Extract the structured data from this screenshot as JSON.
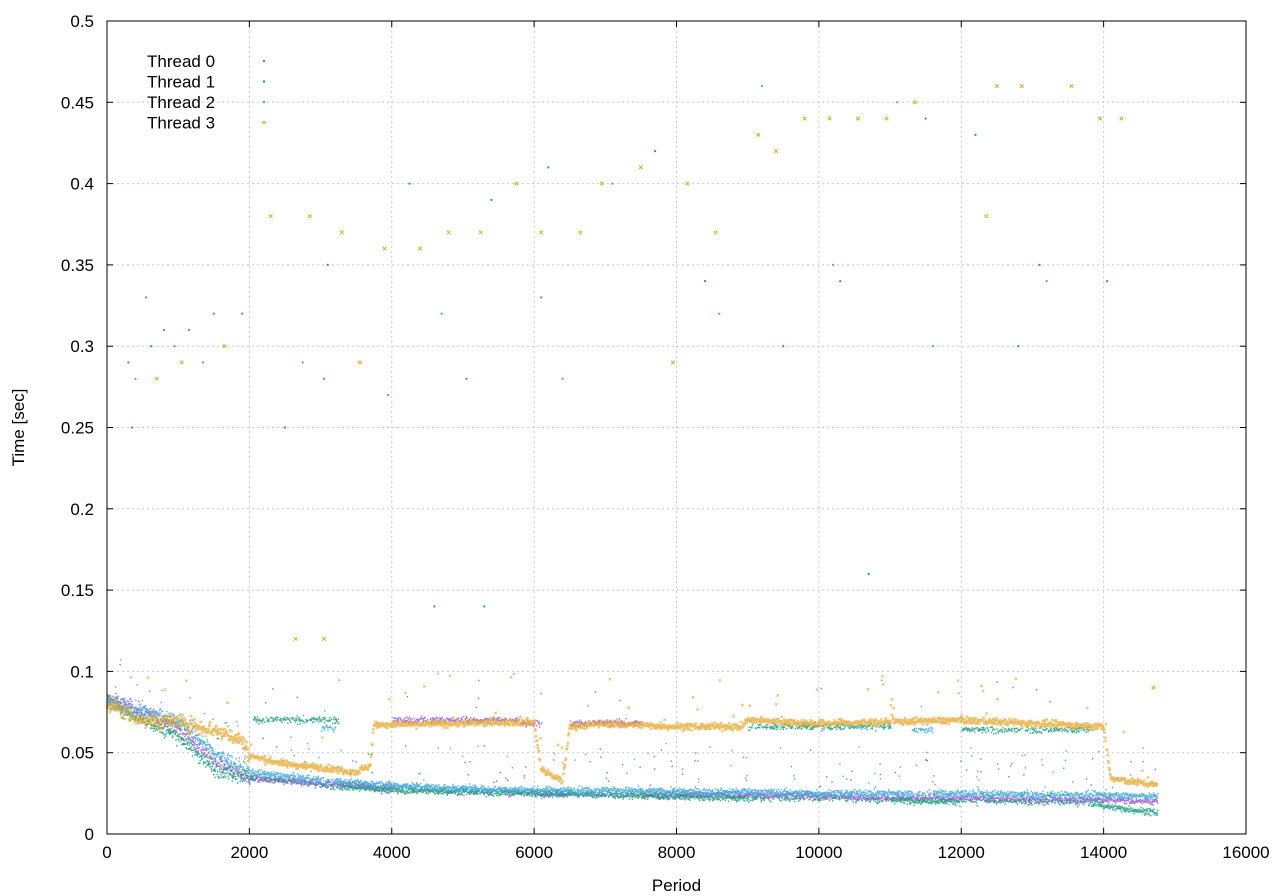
{
  "chart_data": {
    "type": "scatter",
    "title": "",
    "xlabel": "Period",
    "ylabel": "Time [sec]",
    "xlim": [
      0,
      16000
    ],
    "ylim": [
      0,
      0.5
    ],
    "xticks": [
      0,
      2000,
      4000,
      6000,
      8000,
      10000,
      12000,
      14000,
      16000
    ],
    "yticks": [
      0,
      0.05,
      0.1,
      0.15,
      0.2,
      0.25,
      0.3,
      0.35,
      0.4,
      0.45,
      0.5
    ],
    "grid": true,
    "legend_position": "top-left",
    "series": [
      {
        "name": "Thread 0",
        "color": "#9b59d6",
        "marker": "dot",
        "baseline": [
          [
            0,
            0.083
          ],
          [
            500,
            0.075
          ],
          [
            1000,
            0.065
          ],
          [
            1500,
            0.045
          ],
          [
            2000,
            0.034
          ],
          [
            3000,
            0.031
          ],
          [
            4000,
            0.028
          ],
          [
            5000,
            0.026
          ],
          [
            6000,
            0.025
          ],
          [
            7000,
            0.024
          ],
          [
            8000,
            0.024
          ],
          [
            9000,
            0.024
          ],
          [
            10000,
            0.023
          ],
          [
            11000,
            0.022
          ],
          [
            12000,
            0.022
          ],
          [
            13000,
            0.021
          ],
          [
            14000,
            0.021
          ],
          [
            14750,
            0.02
          ]
        ],
        "plateaus": [
          [
            4000,
            5800,
            0.07
          ],
          [
            5800,
            6100,
            0.068
          ],
          [
            6500,
            7500,
            0.068
          ]
        ],
        "outliers": [
          [
            300,
            0.29
          ],
          [
            550,
            0.33
          ],
          [
            800,
            0.31
          ],
          [
            1150,
            0.31
          ],
          [
            1500,
            0.32
          ],
          [
            2500,
            0.25
          ],
          [
            3050,
            0.28
          ],
          [
            5050,
            0.28
          ],
          [
            6100,
            0.33
          ],
          [
            10300,
            0.34
          ]
        ]
      },
      {
        "name": "Thread 1",
        "color": "#1a9e7e",
        "marker": "dot",
        "baseline": [
          [
            0,
            0.082
          ],
          [
            500,
            0.07
          ],
          [
            1000,
            0.06
          ],
          [
            1500,
            0.04
          ],
          [
            2000,
            0.035
          ],
          [
            3000,
            0.03
          ],
          [
            4000,
            0.027
          ],
          [
            5000,
            0.026
          ],
          [
            6000,
            0.025
          ],
          [
            7000,
            0.024
          ],
          [
            8000,
            0.023
          ],
          [
            9000,
            0.022
          ],
          [
            10000,
            0.022
          ],
          [
            11000,
            0.021
          ],
          [
            12000,
            0.02
          ],
          [
            13000,
            0.02
          ],
          [
            13900,
            0.019
          ],
          [
            14000,
            0.017
          ],
          [
            14750,
            0.013
          ]
        ],
        "plateaus": [
          [
            2050,
            3250,
            0.07
          ],
          [
            9000,
            11000,
            0.066
          ],
          [
            12000,
            13800,
            0.064
          ]
        ],
        "outliers": [
          [
            350,
            0.25
          ],
          [
            620,
            0.3
          ],
          [
            1900,
            0.32
          ],
          [
            3100,
            0.35
          ],
          [
            4250,
            0.4
          ],
          [
            5400,
            0.39
          ],
          [
            6200,
            0.41
          ],
          [
            7700,
            0.42
          ],
          [
            8400,
            0.34
          ],
          [
            9500,
            0.3
          ],
          [
            11500,
            0.44
          ],
          [
            12200,
            0.43
          ],
          [
            12800,
            0.3
          ],
          [
            13100,
            0.35
          ],
          [
            14050,
            0.34
          ],
          [
            10700,
            0.16
          ],
          [
            4600,
            0.14
          ],
          [
            5300,
            0.14
          ]
        ]
      },
      {
        "name": "Thread 2",
        "color": "#3ba8dc",
        "marker": "dot",
        "baseline": [
          [
            0,
            0.08
          ],
          [
            500,
            0.075
          ],
          [
            1000,
            0.07
          ],
          [
            1500,
            0.05
          ],
          [
            2000,
            0.038
          ],
          [
            3000,
            0.033
          ],
          [
            4000,
            0.03
          ],
          [
            5000,
            0.028
          ],
          [
            6000,
            0.027
          ],
          [
            7000,
            0.027
          ],
          [
            8000,
            0.026
          ],
          [
            9000,
            0.026
          ],
          [
            10000,
            0.025
          ],
          [
            11000,
            0.025
          ],
          [
            12000,
            0.025
          ],
          [
            13000,
            0.024
          ],
          [
            14000,
            0.024
          ],
          [
            14750,
            0.023
          ]
        ],
        "plateaus": [
          [
            3000,
            3200,
            0.065
          ],
          [
            11300,
            11600,
            0.064
          ]
        ],
        "outliers": [
          [
            400,
            0.28
          ],
          [
            950,
            0.3
          ],
          [
            1350,
            0.29
          ],
          [
            2750,
            0.29
          ],
          [
            3950,
            0.27
          ],
          [
            4700,
            0.32
          ],
          [
            6400,
            0.28
          ],
          [
            7100,
            0.4
          ],
          [
            8600,
            0.32
          ],
          [
            9200,
            0.46
          ],
          [
            10200,
            0.35
          ],
          [
            11100,
            0.45
          ],
          [
            11600,
            0.3
          ],
          [
            13200,
            0.34
          ]
        ]
      },
      {
        "name": "Thread 3",
        "color": "#e3a62a",
        "marker": "x",
        "baseline": [
          [
            0,
            0.08
          ],
          [
            500,
            0.07
          ],
          [
            1000,
            0.069
          ],
          [
            1500,
            0.064
          ],
          [
            1900,
            0.058
          ],
          [
            2000,
            0.048
          ],
          [
            2500,
            0.043
          ],
          [
            3000,
            0.041
          ],
          [
            3500,
            0.038
          ],
          [
            3700,
            0.042
          ],
          [
            3750,
            0.067
          ],
          [
            5000,
            0.068
          ],
          [
            6000,
            0.069
          ],
          [
            6100,
            0.04
          ],
          [
            6400,
            0.032
          ],
          [
            6500,
            0.066
          ],
          [
            7000,
            0.068
          ],
          [
            8000,
            0.066
          ],
          [
            8900,
            0.066
          ],
          [
            9000,
            0.07
          ],
          [
            10000,
            0.068
          ],
          [
            11000,
            0.069
          ],
          [
            12000,
            0.07
          ],
          [
            13000,
            0.068
          ],
          [
            14000,
            0.066
          ],
          [
            14100,
            0.034
          ],
          [
            14750,
            0.03
          ]
        ],
        "plateaus": [],
        "outliers": [
          [
            700,
            0.28
          ],
          [
            1050,
            0.29
          ],
          [
            1650,
            0.3
          ],
          [
            2300,
            0.38
          ],
          [
            2850,
            0.38
          ],
          [
            3300,
            0.37
          ],
          [
            3900,
            0.36
          ],
          [
            4400,
            0.36
          ],
          [
            4800,
            0.37
          ],
          [
            5250,
            0.37
          ],
          [
            5750,
            0.4
          ],
          [
            6100,
            0.37
          ],
          [
            6650,
            0.37
          ],
          [
            6950,
            0.4
          ],
          [
            7500,
            0.41
          ],
          [
            7950,
            0.29
          ],
          [
            8150,
            0.4
          ],
          [
            8550,
            0.37
          ],
          [
            9150,
            0.43
          ],
          [
            9400,
            0.42
          ],
          [
            9800,
            0.44
          ],
          [
            10150,
            0.44
          ],
          [
            10550,
            0.44
          ],
          [
            10950,
            0.44
          ],
          [
            11350,
            0.45
          ],
          [
            12350,
            0.38
          ],
          [
            12500,
            0.46
          ],
          [
            12850,
            0.46
          ],
          [
            13550,
            0.46
          ],
          [
            13950,
            0.44
          ],
          [
            14250,
            0.44
          ],
          [
            2650,
            0.12
          ],
          [
            3050,
            0.12
          ],
          [
            3550,
            0.29
          ],
          [
            14700,
            0.09
          ]
        ]
      }
    ]
  }
}
